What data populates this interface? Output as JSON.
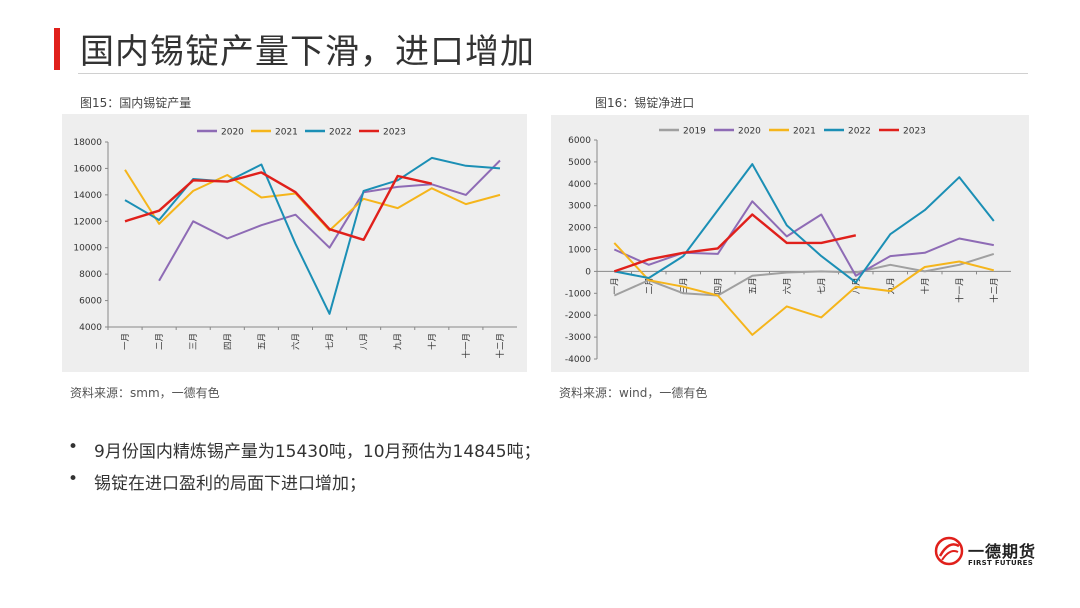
{
  "page": {
    "title": "国内锡锭产量下滑，进口增加",
    "bullets": [
      "9月份国内精炼锡产量为15430吨，10月预估为14845吨；",
      "锡锭在进口盈利的局面下进口增加；"
    ],
    "logo": {
      "cn": "一德期货",
      "en": "FIRST FUTURES",
      "accent": "#e0201b"
    }
  },
  "chart_data": [
    {
      "type": "line",
      "caption": "图15：国内锡锭产量",
      "source": "资料来源：smm，一德有色",
      "categories": [
        "一月",
        "二月",
        "三月",
        "四月",
        "五月",
        "六月",
        "七月",
        "八月",
        "九月",
        "十月",
        "十一月",
        "十二月"
      ],
      "ylim": [
        4000,
        18000
      ],
      "yticks": [
        4000,
        6000,
        8000,
        10000,
        12000,
        14000,
        16000,
        18000
      ],
      "legend_position": "top",
      "grid": false,
      "series": [
        {
          "name": "2020",
          "color": "#8e6bb5",
          "values": [
            null,
            7500,
            12000,
            10700,
            11700,
            12500,
            10000,
            14200,
            14600,
            14800,
            14000,
            16600
          ]
        },
        {
          "name": "2021",
          "color": "#f5b51b",
          "values": [
            15900,
            11800,
            14300,
            15500,
            13800,
            14100,
            11300,
            13700,
            13000,
            14500,
            13300,
            14000
          ]
        },
        {
          "name": "2022",
          "color": "#1b8fb5",
          "values": [
            13600,
            12100,
            15200,
            15000,
            16300,
            10300,
            5000,
            14300,
            15100,
            16800,
            16200,
            16000
          ]
        },
        {
          "name": "2023",
          "color": "#e0201b",
          "values": [
            12000,
            12800,
            15100,
            15000,
            15700,
            14200,
            11400,
            10600,
            15430,
            14845,
            null,
            null
          ]
        }
      ]
    },
    {
      "type": "line",
      "caption": "图16：锡锭净进口",
      "source": "资料来源：wind，一德有色",
      "categories": [
        "一月",
        "二月",
        "三月",
        "四月",
        "五月",
        "六月",
        "七月",
        "八月",
        "九月",
        "十月",
        "十一月",
        "十二月"
      ],
      "ylim": [
        -4000,
        6000
      ],
      "yticks": [
        -4000,
        -3000,
        -2000,
        -1000,
        0,
        1000,
        2000,
        3000,
        4000,
        5000,
        6000
      ],
      "legend_position": "top",
      "grid": false,
      "series": [
        {
          "name": "2019",
          "color": "#a0a0a0",
          "values": [
            -1100,
            -400,
            -1000,
            -1100,
            -200,
            -50,
            0,
            -50,
            300,
            0,
            300,
            800
          ]
        },
        {
          "name": "2020",
          "color": "#8e6bb5",
          "values": [
            1000,
            300,
            850,
            800,
            3200,
            1600,
            2600,
            -200,
            700,
            850,
            1500,
            1200
          ]
        },
        {
          "name": "2021",
          "color": "#f5b51b",
          "values": [
            1300,
            -400,
            -700,
            -1100,
            -2900,
            -1600,
            -2100,
            -700,
            -900,
            200,
            450,
            50
          ]
        },
        {
          "name": "2022",
          "color": "#1b8fb5",
          "values": [
            0,
            -300,
            700,
            2800,
            4900,
            2100,
            700,
            -500,
            1700,
            2800,
            4300,
            2300
          ]
        },
        {
          "name": "2023",
          "color": "#e0201b",
          "values": [
            0,
            550,
            850,
            1050,
            2600,
            1300,
            1300,
            1650,
            null,
            null,
            null,
            null
          ]
        }
      ]
    }
  ]
}
